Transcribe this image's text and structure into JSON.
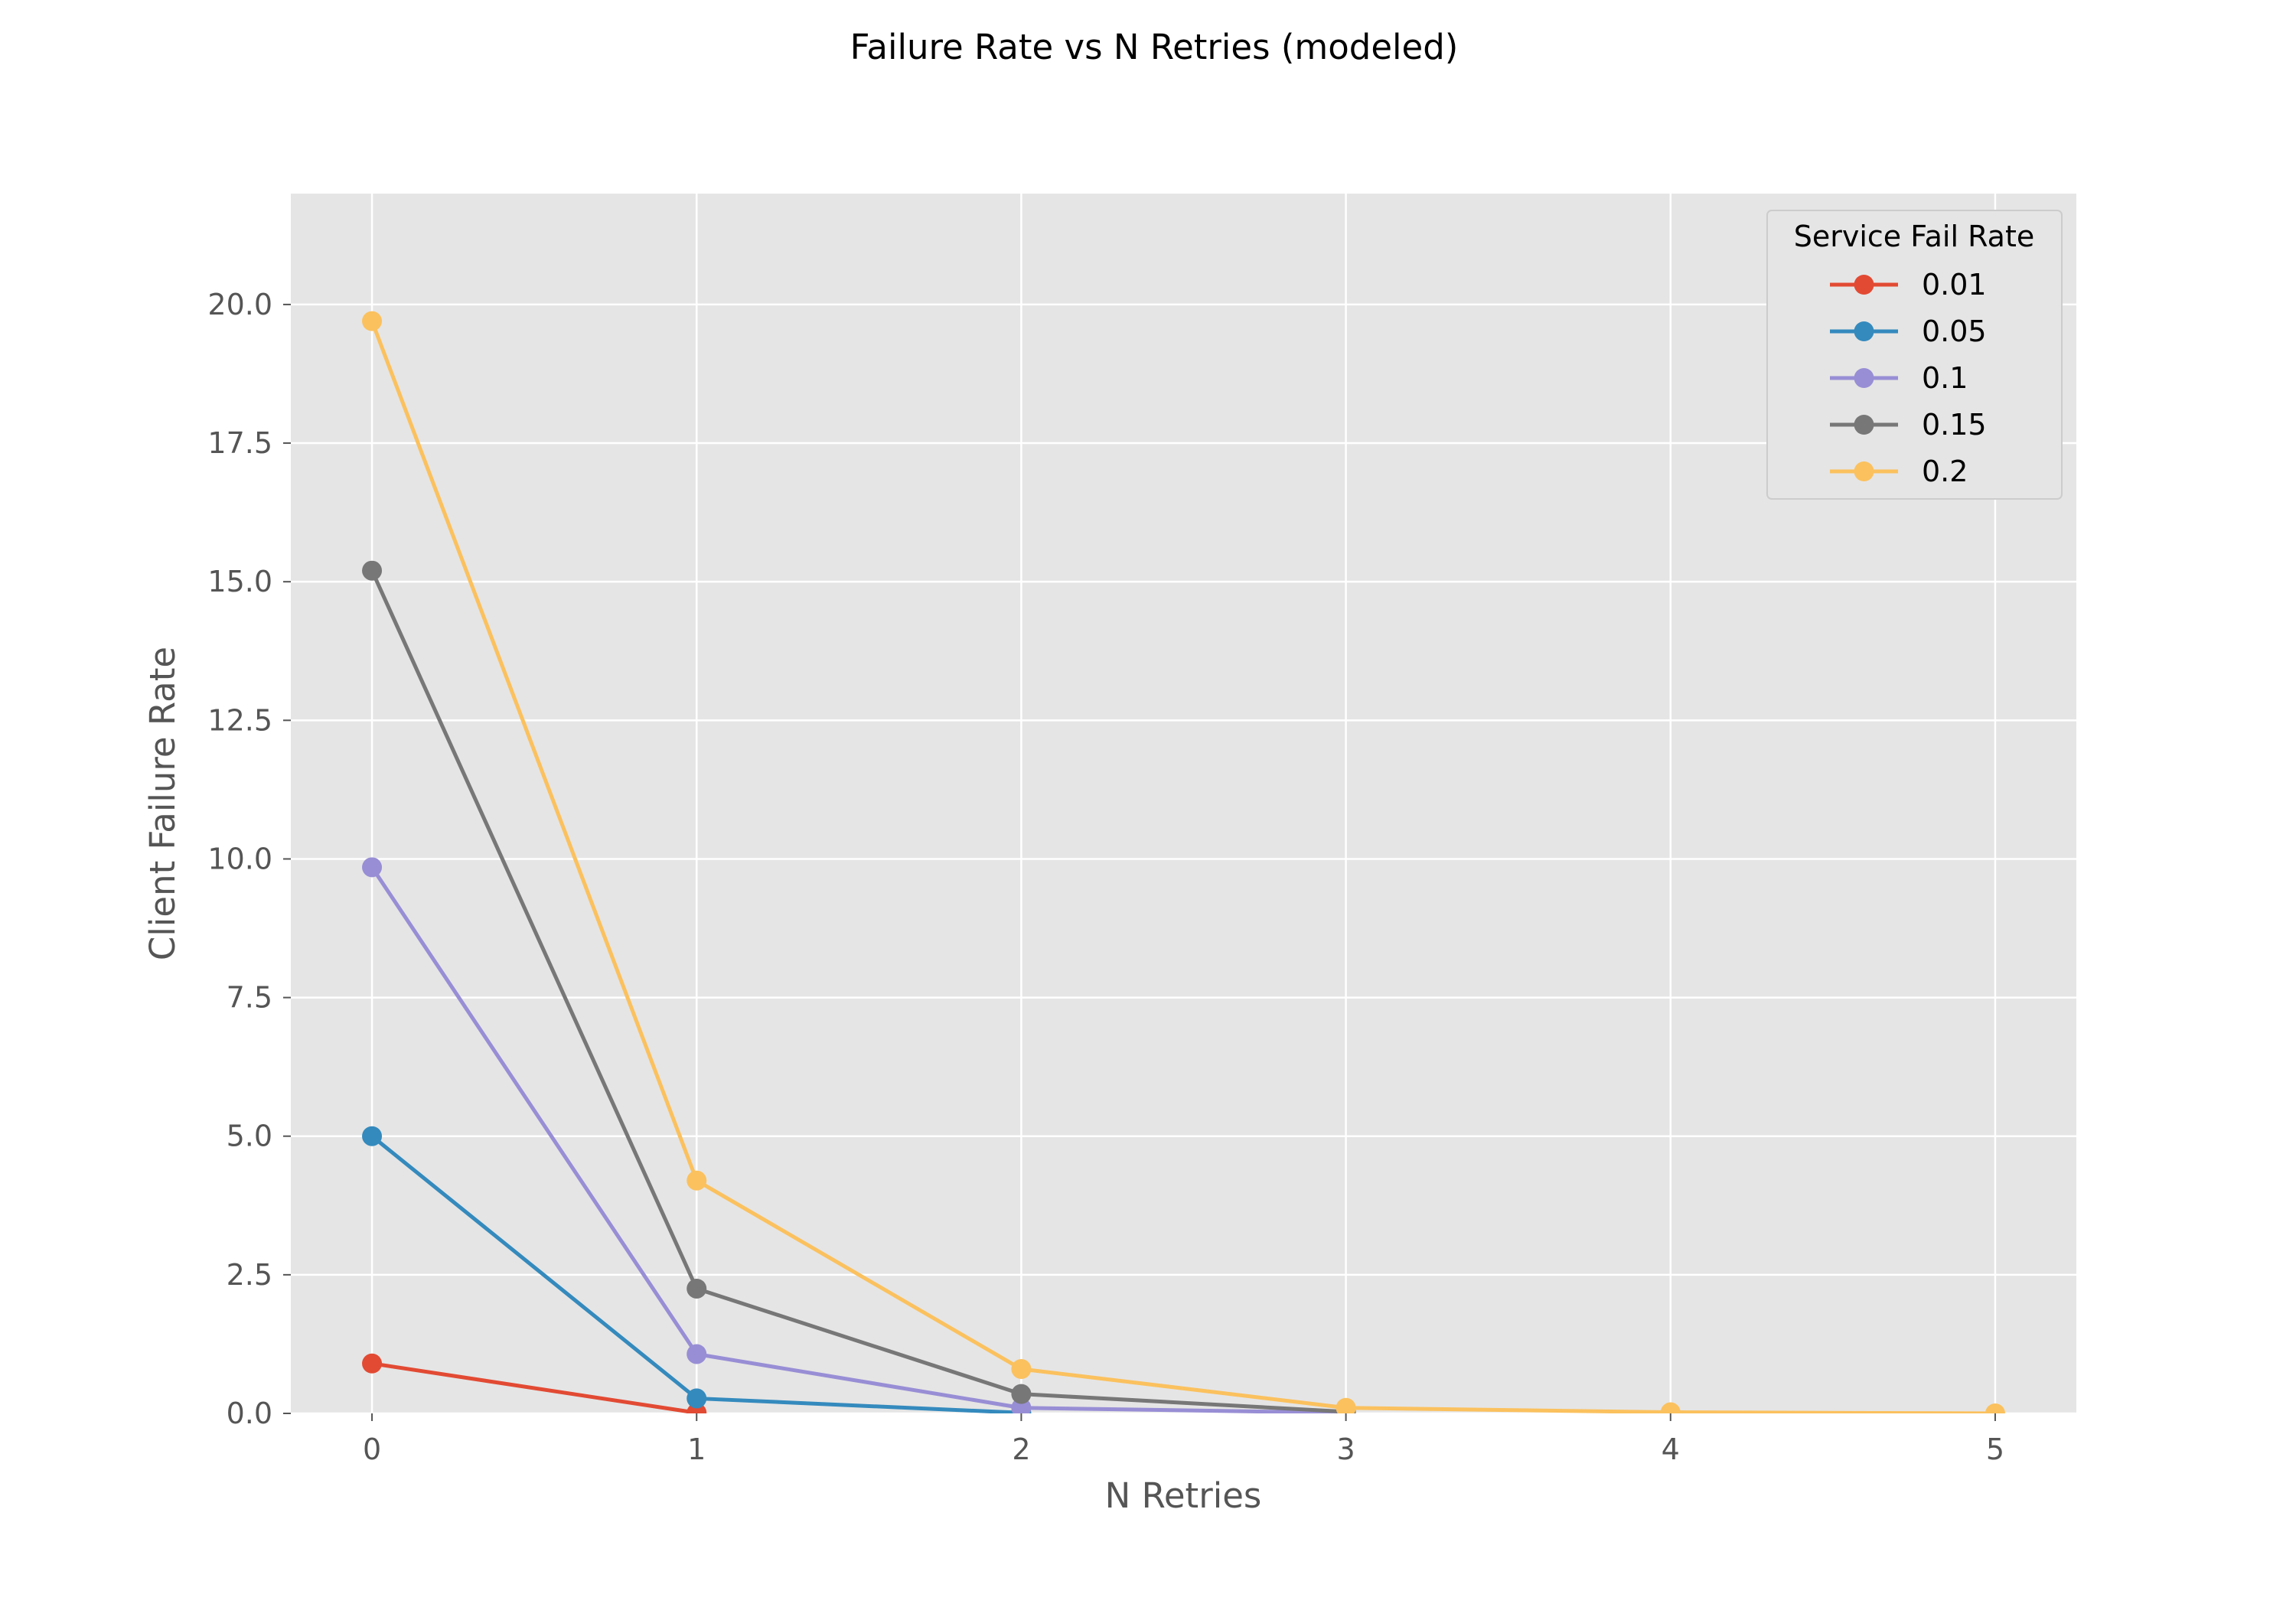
{
  "chart_data": {
    "type": "line",
    "title": "Failure Rate vs N Retries (modeled)",
    "xlabel": "N Retries",
    "ylabel": "Client Failure Rate",
    "x": [
      0,
      1,
      2,
      3,
      4,
      5
    ],
    "xlim": [
      -0.25,
      5.25
    ],
    "ylim": [
      0,
      22
    ],
    "x_ticks": [
      0,
      1,
      2,
      3,
      4,
      5
    ],
    "y_ticks": [
      0,
      2.5,
      5,
      7.5,
      10,
      12.5,
      15,
      17.5,
      20
    ],
    "x_tick_labels": [
      "0",
      "1",
      "2",
      "3",
      "4",
      "5"
    ],
    "y_tick_labels": [
      "0.0",
      "2.5",
      "5.0",
      "7.5",
      "10.0",
      "12.5",
      "15.0",
      "17.5",
      "20.0"
    ],
    "grid": true,
    "style": "ggplot",
    "background": "#E5E5E5",
    "legend": {
      "title": "Service Fail Rate",
      "placement": "top-right"
    },
    "series": [
      {
        "name": "0.01",
        "color": "#E24A33",
        "x": [
          0,
          1
        ],
        "values": [
          0.9,
          0.01
        ]
      },
      {
        "name": "0.05",
        "color": "#348ABD",
        "x": [
          0,
          1,
          2
        ],
        "values": [
          5.0,
          0.27,
          0.01
        ]
      },
      {
        "name": "0.1",
        "color": "#988ED5",
        "x": [
          0,
          1,
          2,
          3
        ],
        "values": [
          9.85,
          1.07,
          0.1,
          0.01
        ]
      },
      {
        "name": "0.15",
        "color": "#777777",
        "x": [
          0,
          1,
          2,
          3
        ],
        "values": [
          15.2,
          2.25,
          0.35,
          0.03
        ]
      },
      {
        "name": "0.2",
        "color": "#FBC15E",
        "x": [
          0,
          1,
          2,
          3,
          4,
          5
        ],
        "values": [
          19.7,
          4.2,
          0.8,
          0.1,
          0.02,
          0.0
        ]
      }
    ]
  }
}
